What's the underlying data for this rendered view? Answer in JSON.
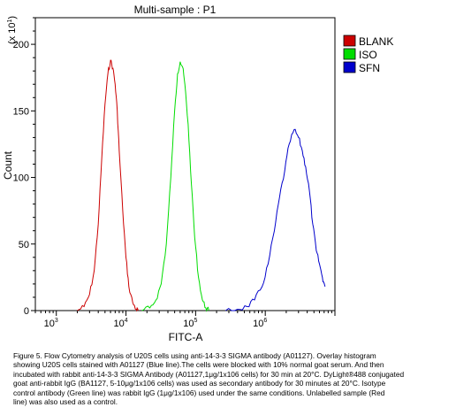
{
  "chart_data": {
    "type": "line",
    "title": "Multi-sample : P1",
    "xlabel": "FITC-A",
    "ylabel": "Count",
    "y_multiplier": "(x 10",
    "y_multiplier_exp": "1",
    "y_multiplier_close": ")",
    "x_scale": "log",
    "xlim": [
      500,
      10000000
    ],
    "ylim": [
      0,
      220
    ],
    "x_ticks": [
      {
        "value": 1000,
        "base": "10",
        "exp": "3"
      },
      {
        "value": 10000,
        "base": "10",
        "exp": "4"
      },
      {
        "value": 100000,
        "base": "10",
        "exp": "5"
      },
      {
        "value": 1000000,
        "base": "10",
        "exp": "6"
      }
    ],
    "y_ticks": [
      {
        "value": 0,
        "label": "0"
      },
      {
        "value": 50,
        "label": "50"
      },
      {
        "value": 100,
        "label": "100"
      },
      {
        "value": 150,
        "label": "150"
      },
      {
        "value": 200,
        "label": "200"
      }
    ],
    "grid": false,
    "legend_position": "right",
    "series": [
      {
        "name": "BLANK",
        "color": "#cc0000",
        "points": [
          [
            2000,
            0
          ],
          [
            2500,
            3
          ],
          [
            3000,
            12
          ],
          [
            3500,
            30
          ],
          [
            4000,
            65
          ],
          [
            4500,
            115
          ],
          [
            5000,
            155
          ],
          [
            5500,
            178
          ],
          [
            6000,
            188
          ],
          [
            6500,
            182
          ],
          [
            7000,
            170
          ],
          [
            7500,
            150
          ],
          [
            8000,
            120
          ],
          [
            9000,
            75
          ],
          [
            10000,
            40
          ],
          [
            11000,
            18
          ],
          [
            12500,
            6
          ],
          [
            14000,
            1
          ],
          [
            15000,
            0
          ]
        ]
      },
      {
        "name": "ISO",
        "color": "#00dd00",
        "points": [
          [
            17000,
            0
          ],
          [
            22000,
            2
          ],
          [
            27000,
            8
          ],
          [
            32000,
            20
          ],
          [
            38000,
            50
          ],
          [
            44000,
            100
          ],
          [
            50000,
            150
          ],
          [
            55000,
            178
          ],
          [
            60000,
            187
          ],
          [
            65000,
            183
          ],
          [
            70000,
            170
          ],
          [
            78000,
            140
          ],
          [
            87000,
            95
          ],
          [
            97000,
            55
          ],
          [
            110000,
            25
          ],
          [
            125000,
            8
          ],
          [
            140000,
            2
          ],
          [
            155000,
            0
          ]
        ]
      },
      {
        "name": "SFN",
        "color": "#0000cc",
        "points": [
          [
            270000,
            0
          ],
          [
            400000,
            1
          ],
          [
            550000,
            3
          ],
          [
            700000,
            8
          ],
          [
            900000,
            18
          ],
          [
            1100000,
            35
          ],
          [
            1350000,
            60
          ],
          [
            1600000,
            85
          ],
          [
            1900000,
            105
          ],
          [
            2200000,
            125
          ],
          [
            2600000,
            136
          ],
          [
            3000000,
            130
          ],
          [
            3400000,
            120
          ],
          [
            3800000,
            108
          ],
          [
            4300000,
            90
          ],
          [
            4800000,
            65
          ],
          [
            5400000,
            45
          ],
          [
            6000000,
            35
          ],
          [
            6600000,
            25
          ],
          [
            7200000,
            18
          ]
        ]
      }
    ]
  },
  "caption": "Figure 5. Flow Cytometry analysis of U20S cells using anti-14-3-3 SIGMA antibody (A01127).  Overlay histogram\nshowing U20S cells stained with A01127 (Blue line).The cells were blocked with 10% normal goat serum. And then\nincubated with rabbit anti-14-3-3 SIGMA Antibody (A01127,1μg/1x106 cells) for 30 min at 20°C. DyLight®488 conjugated\ngoat anti-rabbit IgG (BA1127, 5-10μg/1x106 cells) was used as secondary antibody for 30 minutes at 20°C. Isotype\ncontrol antibody (Green line) was rabbit IgG (1μg/1x106) used under the same conditions. Unlabelled sample (Red\nline) was also used as a control."
}
